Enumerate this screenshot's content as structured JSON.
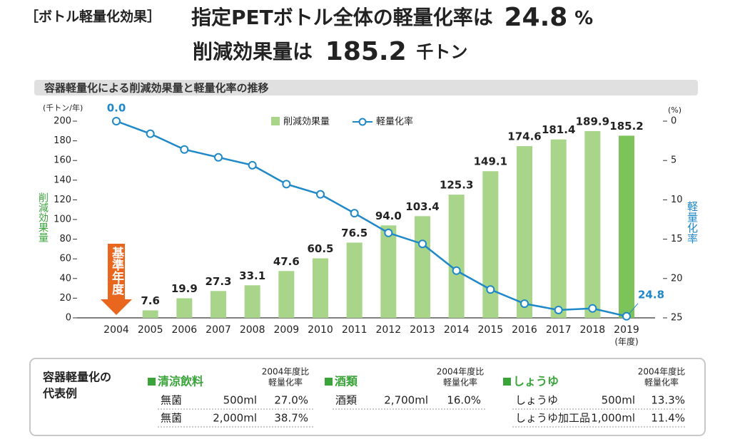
{
  "header": {
    "tag": "［ボトル軽量化効果］",
    "line1": {
      "text": "指定PETボトル全体の軽量化率は",
      "value": "24.8",
      "unit": "%"
    },
    "line2": {
      "text": "削減効果量は",
      "value": "185.2",
      "unit": "千トン"
    }
  },
  "chart_data": {
    "type": "bar-line",
    "title": "容器軽量化による削減効果量と軽量化率の推移",
    "y_unit": "(千トン/年)",
    "y2_unit": "(%)",
    "y_title": "削減効果量",
    "y2_title": "軽量化率",
    "x_unit": "(年度)",
    "annotation": "基準年度",
    "categories": [
      "2004",
      "2005",
      "2006",
      "2007",
      "2008",
      "2009",
      "2010",
      "2011",
      "2012",
      "2013",
      "2014",
      "2015",
      "2016",
      "2017",
      "2018",
      "2019"
    ],
    "series": [
      {
        "name": "削減効果量",
        "color": "#a9d58a",
        "colors": [
          "#a9d58a",
          "#a9d58a",
          "#a9d58a",
          "#a9d58a",
          "#a9d58a",
          "#a9d58a",
          "#a9d58a",
          "#a9d58a",
          "#a9d58a",
          "#a9d58a",
          "#a9d58a",
          "#a9d58a",
          "#a9d58a",
          "#a9d58a",
          "#a9d58a",
          "#7cc35a"
        ],
        "values": [
          null,
          7.6,
          19.9,
          27.3,
          33.1,
          47.6,
          60.5,
          76.5,
          94.0,
          103.4,
          125.3,
          149.1,
          174.6,
          181.4,
          189.9,
          185.2
        ],
        "value_labels": [
          null,
          "7.6",
          "19.9",
          "27.3",
          "33.1",
          "47.6",
          "60.5",
          "76.5",
          "94.0",
          "103.4",
          "125.3",
          "149.1",
          "174.6",
          "181.4",
          "189.9",
          "185.2"
        ]
      },
      {
        "name": "軽量化率",
        "color": "#1e88c8",
        "axis": "y2",
        "values": [
          0,
          1.6,
          3.6,
          4.6,
          5.6,
          8.0,
          9.3,
          11.7,
          14.2,
          15.6,
          19.0,
          21.4,
          23.2,
          24.0,
          23.8,
          24.8
        ],
        "value_labels": [
          "0.0",
          null,
          null,
          null,
          null,
          null,
          null,
          null,
          null,
          null,
          null,
          null,
          null,
          null,
          null,
          "24.8"
        ]
      }
    ],
    "ylim": [
      0,
      200
    ],
    "yticks": [
      0,
      20,
      40,
      60,
      80,
      100,
      120,
      140,
      160,
      180,
      200
    ],
    "y2lim": [
      0,
      25
    ],
    "y2ticks": [
      0,
      5,
      10,
      15,
      20,
      25
    ],
    "y2_inverted": true
  },
  "table": {
    "title": [
      "容器軽量化の",
      "代表例"
    ],
    "groups": [
      {
        "name": "清涼飲料",
        "column_header": [
          "2004年度比",
          "軽量化率"
        ],
        "rows": [
          [
            "無菌",
            "500ml",
            "27.0%"
          ],
          [
            "無菌",
            "2,000ml",
            "38.7%"
          ]
        ]
      },
      {
        "name": "酒類",
        "column_header": [
          "2004年度比",
          "軽量化率"
        ],
        "rows": [
          [
            "酒類",
            "2,700ml",
            "16.0%"
          ]
        ]
      },
      {
        "name": "しょうゆ",
        "column_header": [
          "2004年度比",
          "軽量化率"
        ],
        "rows": [
          [
            "しょうゆ",
            "500ml",
            "13.3%"
          ],
          [
            "しょうゆ加工品",
            "1,000ml",
            "11.4%"
          ]
        ]
      }
    ]
  }
}
